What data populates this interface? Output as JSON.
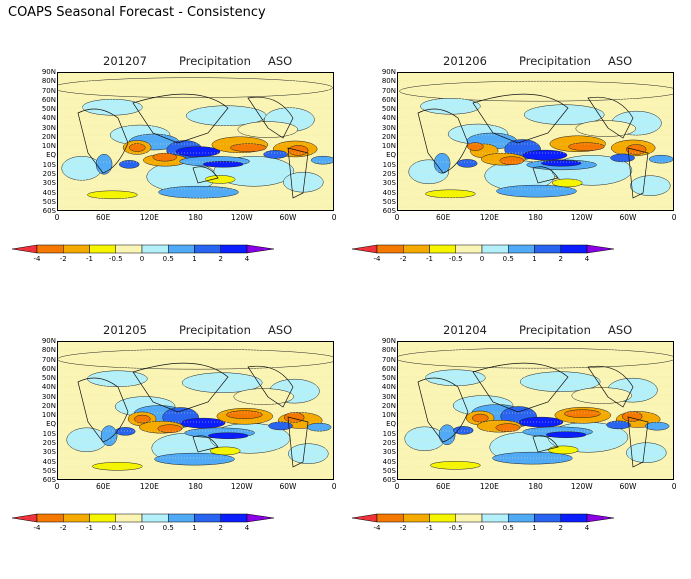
{
  "figure_title": "COAPS Seasonal Forecast - Consistency",
  "panels": [
    {
      "run": "201207",
      "variable": "Precipitation",
      "season": "ASO"
    },
    {
      "run": "201206",
      "variable": "Precipitation",
      "season": "ASO"
    },
    {
      "run": "201205",
      "variable": "Precipitation",
      "season": "ASO"
    },
    {
      "run": "201204",
      "variable": "Precipitation",
      "season": "ASO"
    }
  ],
  "lat_labels": [
    "90N",
    "80N",
    "70N",
    "60N",
    "50N",
    "40N",
    "30N",
    "20N",
    "10N",
    "EQ",
    "10S",
    "20S",
    "30S",
    "40S",
    "50S",
    "60S"
  ],
  "lon_labels": [
    "0",
    "60E",
    "120E",
    "180",
    "120W",
    "60W",
    "0"
  ],
  "colorbar": {
    "labels": [
      "-4",
      "-2",
      "-1",
      "-0.5",
      "0",
      "0.5",
      "1",
      "2",
      "4"
    ],
    "colors": [
      "#f0323c",
      "#f57800",
      "#f5aa00",
      "#f5f500",
      "#faf5b4",
      "#b4f0fa",
      "#50aaf5",
      "#2864f0",
      "#0a1eff",
      "#8c00e6"
    ]
  }
}
